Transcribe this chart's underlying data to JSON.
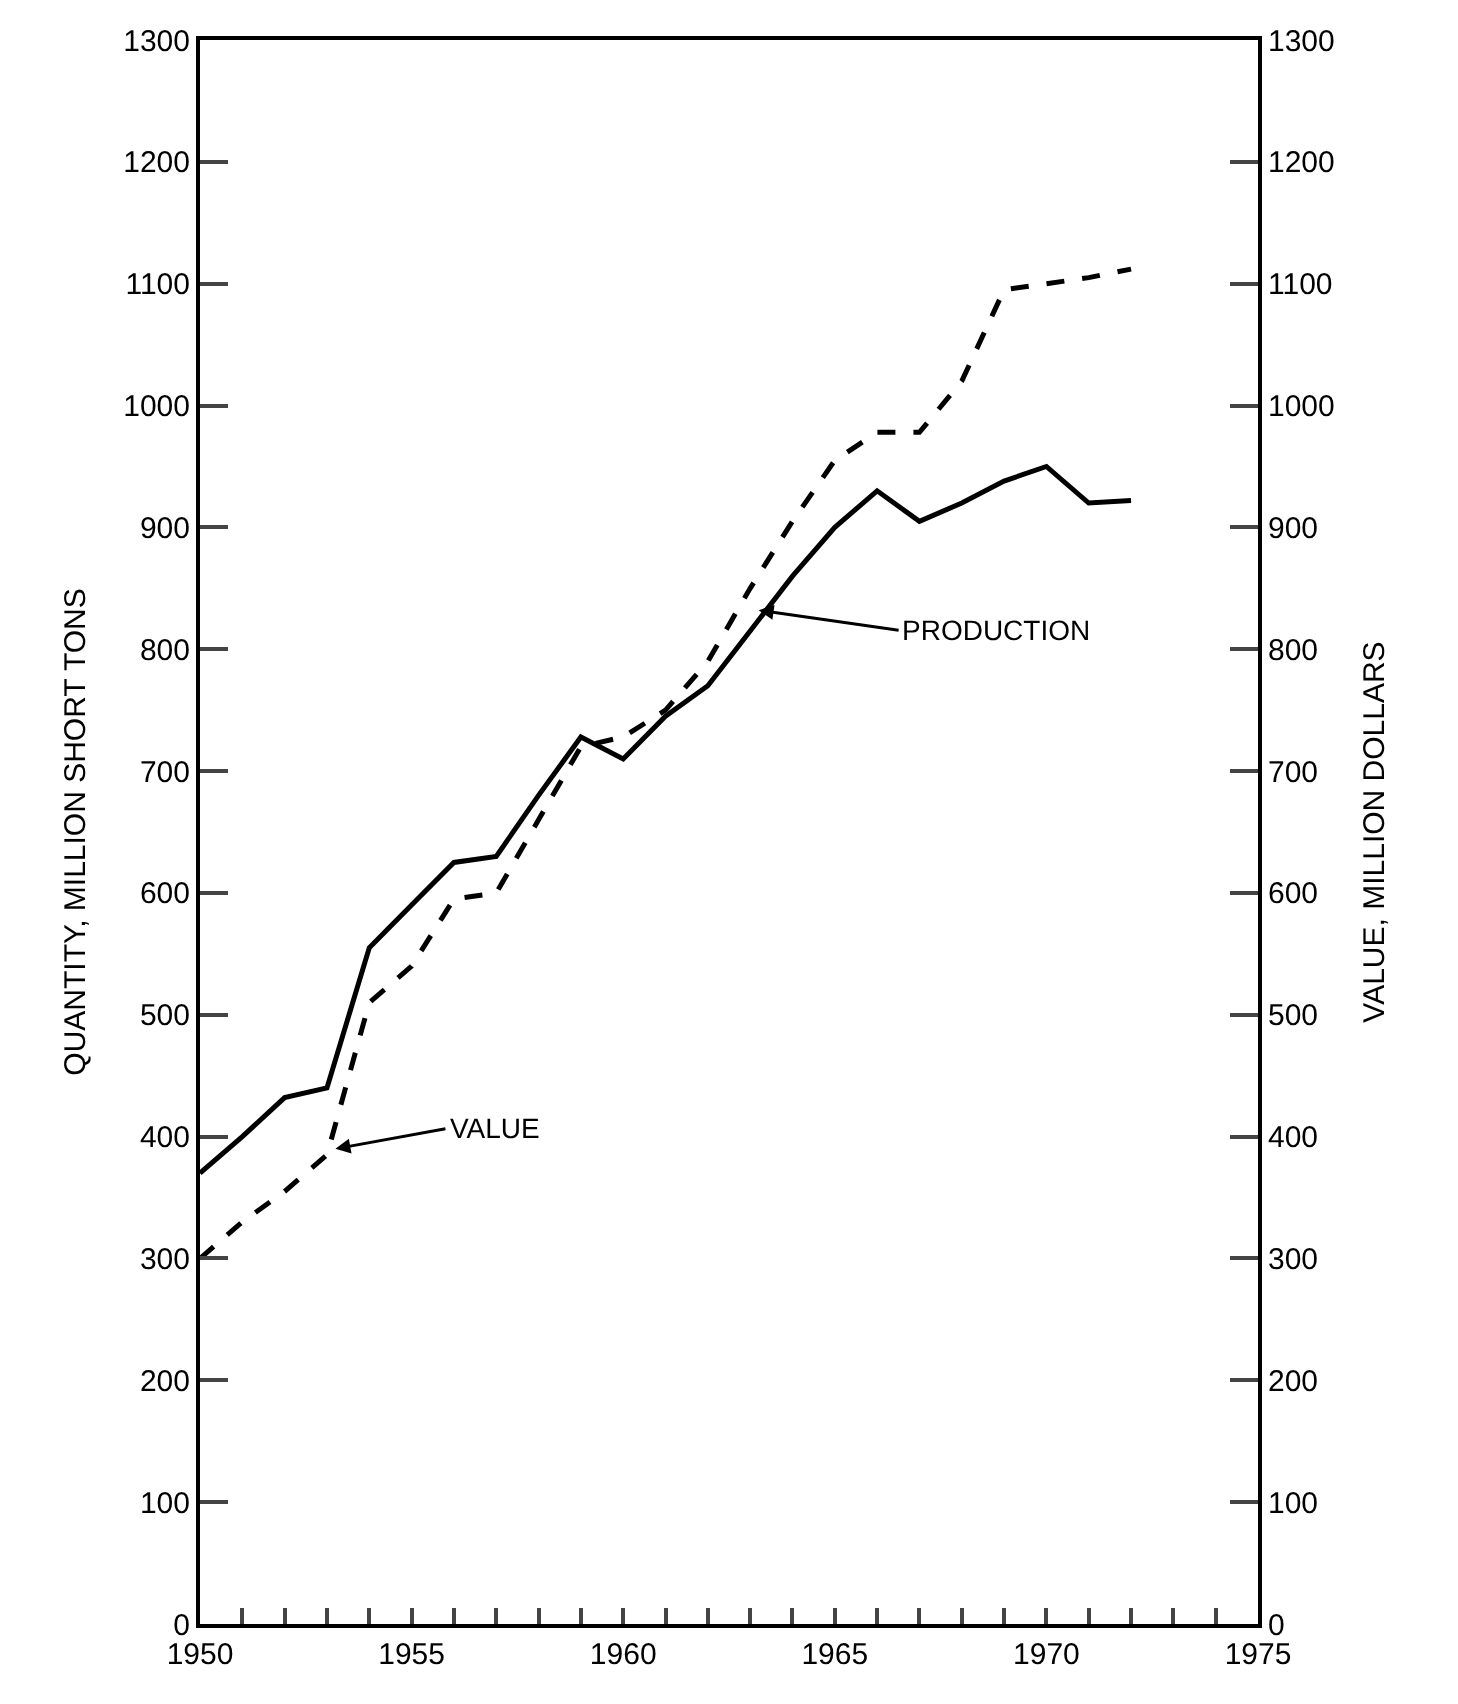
{
  "chart_data": {
    "type": "line",
    "ylabel": "QUANTITY, MILLION SHORT TONS",
    "y2label": "VALUE, MILLION DOLLARS",
    "x": [
      1950,
      1951,
      1952,
      1953,
      1954,
      1955,
      1956,
      1957,
      1958,
      1959,
      1960,
      1961,
      1962,
      1963,
      1964,
      1965,
      1966,
      1967,
      1968,
      1969,
      1970,
      1971,
      1972
    ],
    "series": [
      {
        "color": "#000000",
        "line_style": "solid",
        "values": [
          370,
          400,
          432,
          440,
          555,
          590,
          625,
          630,
          680,
          728,
          710,
          745,
          770,
          815,
          860,
          900,
          930,
          905,
          920,
          938,
          950,
          920,
          922
        ]
      },
      {
        "color": "#000000",
        "line_style": "dashed",
        "axis": "y2",
        "values": [
          300,
          330,
          355,
          385,
          510,
          540,
          595,
          600,
          660,
          720,
          728,
          750,
          790,
          850,
          905,
          955,
          978,
          978,
          1020,
          1095,
          1100,
          1105,
          1112
        ]
      }
    ],
    "annotations": [
      {
        "text": "PRODUCTION",
        "x": 1963.2,
        "y": 832
      },
      {
        "text": "VALUE",
        "x": 1953.2,
        "y": 390
      }
    ],
    "xlim": [
      1950,
      1975
    ],
    "xticks": [
      1950,
      {
        "value": 1951,
        "label": null
      },
      {
        "value": 1952,
        "label": null
      },
      {
        "value": 1953,
        "label": null
      },
      {
        "value": 1954,
        "label": null
      },
      1955,
      {
        "value": 1956,
        "label": null
      },
      {
        "value": 1957,
        "label": null
      },
      {
        "value": 1958,
        "label": null
      },
      {
        "value": 1959,
        "label": null
      },
      1960,
      {
        "value": 1961,
        "label": null
      },
      {
        "value": 1962,
        "label": null
      },
      {
        "value": 1963,
        "label": null
      },
      {
        "value": 1964,
        "label": null
      },
      1965,
      {
        "value": 1966,
        "label": null
      },
      {
        "value": 1967,
        "label": null
      },
      {
        "value": 1968,
        "label": null
      },
      {
        "value": 1969,
        "label": null
      },
      1970,
      {
        "value": 1971,
        "label": null
      },
      {
        "value": 1972,
        "label": null
      },
      {
        "value": 1973,
        "label": null
      },
      {
        "value": 1974,
        "label": null
      },
      1975
    ],
    "ylim": [
      0,
      1300
    ],
    "yticks": [
      0,
      100,
      200,
      300,
      400,
      500,
      600,
      700,
      800,
      900,
      1000,
      1100,
      1200,
      1300
    ],
    "y2lim": [
      0,
      1300
    ],
    "y2ticks": [
      0,
      100,
      200,
      300,
      400,
      500,
      600,
      700,
      800,
      900,
      1000,
      1100,
      1200,
      1300
    ]
  }
}
